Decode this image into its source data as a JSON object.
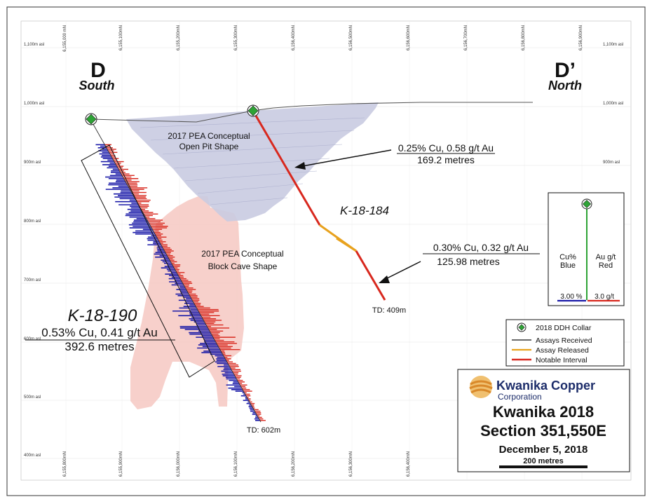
{
  "section": {
    "left_letter": "D",
    "left_direction": "South",
    "right_letter": "D’",
    "right_direction": "North"
  },
  "elevation_labels": [
    "1,100m asl",
    "1,000m asl",
    "900m asl",
    "800m asl",
    "700m asl",
    "600m asl",
    "500m asl",
    "400m asl"
  ],
  "top_northings": [
    "6,155,000 mN",
    "6,155,100mN",
    "6,155,200mN",
    "6,155,300mN",
    "6,156,400mN",
    "6,156,500mN",
    "6,156,600mN",
    "6,156,700mN",
    "6,156,800mN",
    "6,156,900mN"
  ],
  "bottom_northings": [
    "6,155,800mN",
    "6,155,900mN",
    "6,156,000mN",
    "6,156,100mN",
    "6,156,200mN",
    "6,156,300mN",
    "6,156,400mN"
  ],
  "shapes": {
    "open_pit_line1": "2017 PEA Conceptual",
    "open_pit_line2": "Open Pit Shape",
    "block_cave_line1": "2017 PEA Conceptual",
    "block_cave_line2": "Block Cave Shape"
  },
  "holes": {
    "k18184": {
      "name": "K-18-184",
      "td": "TD: 409m",
      "upper_grade": "0.25% Cu, 0.58 g/t Au",
      "upper_length": "169.2 metres",
      "lower_grade": "0.30% Cu, 0.32 g/t Au",
      "lower_length": "125.98 metres"
    },
    "k18190": {
      "name": "K-18-190",
      "td": "TD: 602m",
      "grade": "0.53% Cu, 0.41 g/t Au",
      "length": "392.6 metres"
    }
  },
  "assay_scale": {
    "cu_label_1": "Cu%",
    "cu_label_2": "Blue",
    "au_label_1": "Au g/t",
    "au_label_2": "Red",
    "cu_scale": "3.00 %",
    "au_scale": "3.0 g/t"
  },
  "legend": {
    "collar": "2018 DDH Collar",
    "received": "Assays Received",
    "released": "Assay Released",
    "notable": "Notable Interval"
  },
  "colors": {
    "cu": "#1a1aa8",
    "au": "#d8281e",
    "released": "#e8a21e",
    "pit": "#c9cbe1",
    "cave": "#f6c8c2",
    "collar": "#2ea336"
  },
  "title_block": {
    "company": "Kwanika Copper",
    "company_sub": "Corporation",
    "title": "Kwanika 2018",
    "section": "Section 351,550E",
    "date": "December 5, 2018",
    "scale": "200 metres"
  }
}
